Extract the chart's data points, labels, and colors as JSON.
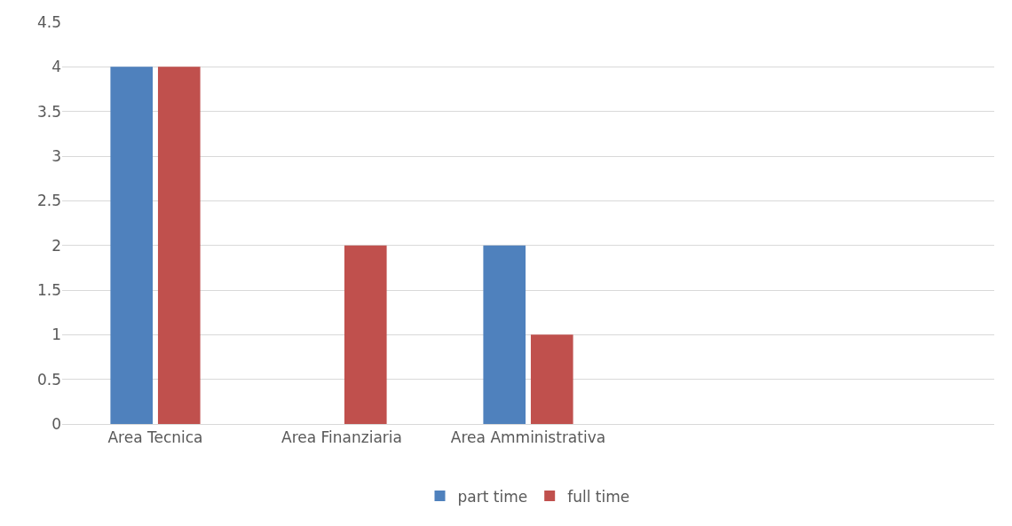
{
  "chart_data": {
    "type": "bar",
    "categories": [
      "Area Tecnica",
      "Area Finanziaria",
      "Area Amministrativa",
      null,
      null
    ],
    "series": [
      {
        "name": "part time",
        "color": "#4f81bd",
        "values": [
          4,
          0,
          2,
          null,
          null
        ]
      },
      {
        "name": "full time",
        "color": "#c0504d",
        "values": [
          4,
          2,
          1,
          null,
          null
        ]
      }
    ],
    "ylim": [
      0,
      4.5
    ],
    "yticks": [
      0,
      0.5,
      1,
      1.5,
      2,
      2.5,
      3,
      3.5,
      4,
      4.5
    ],
    "grid": "y",
    "legend": "bottom"
  }
}
